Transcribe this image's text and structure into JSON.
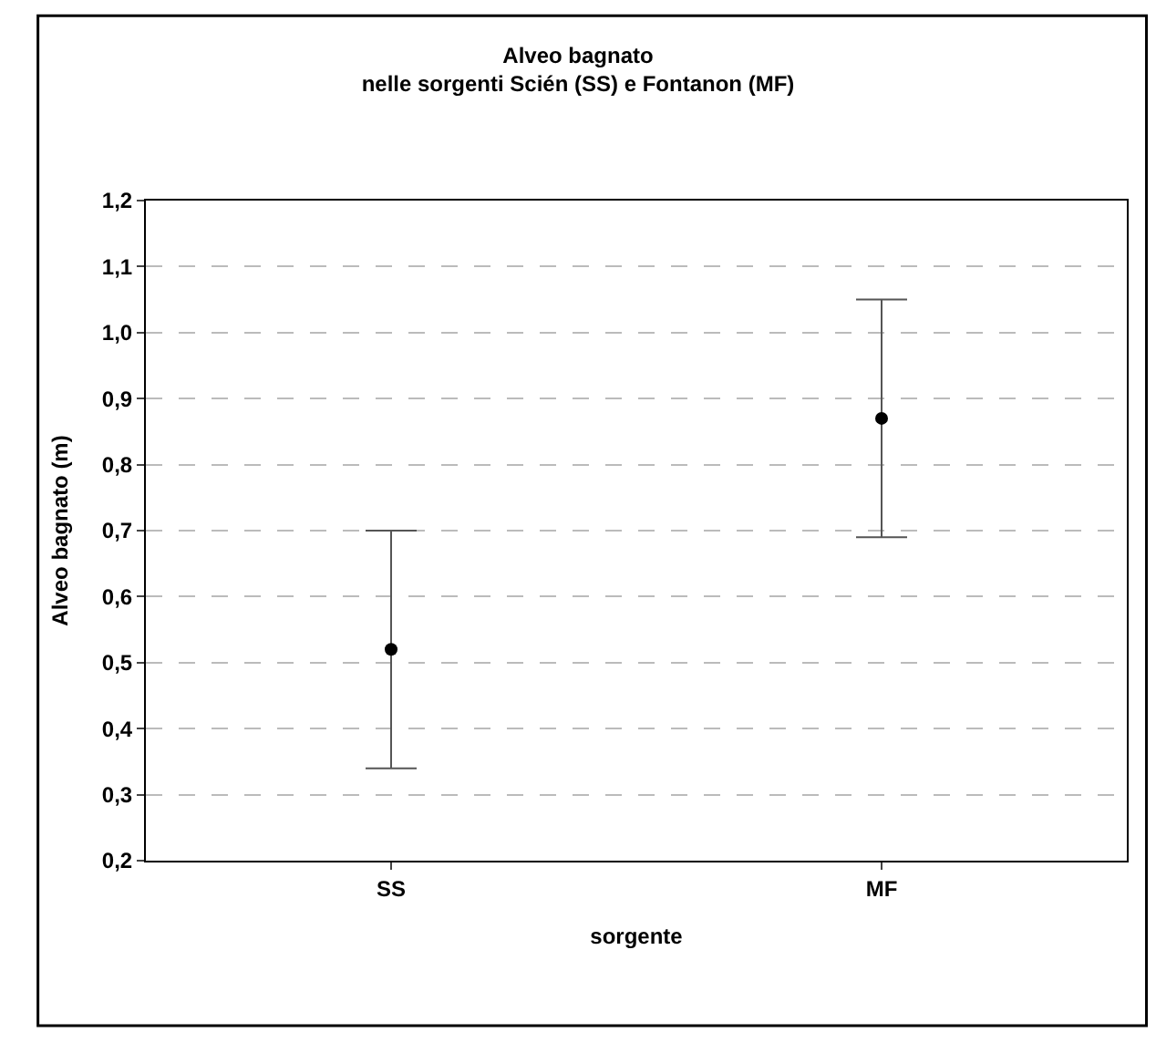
{
  "chart_data": {
    "type": "scatter",
    "title": "Alveo bagnato\nnelle sorgenti Scién (SS) e Fontanon (MF)",
    "xlabel": "sorgente",
    "ylabel": "Alveo bagnato (m)",
    "categories": [
      "SS",
      "MF"
    ],
    "values": [
      0.52,
      0.87
    ],
    "color": "#000000",
    "marker": "circle",
    "errors": [
      [
        0.34,
        0.7
      ],
      [
        0.69,
        1.05
      ]
    ],
    "ylim": [
      0.2,
      1.2
    ],
    "yticks": [
      {
        "value": 0.2,
        "label": "0,2"
      },
      {
        "value": 0.3,
        "label": "0,3"
      },
      {
        "value": 0.4,
        "label": "0,4"
      },
      {
        "value": 0.5,
        "label": "0,5"
      },
      {
        "value": 0.6,
        "label": "0,6"
      },
      {
        "value": 0.7,
        "label": "0,7"
      },
      {
        "value": 0.8,
        "label": "0,8"
      },
      {
        "value": 0.9,
        "label": "0,9"
      },
      {
        "value": 1.0,
        "label": "1,0"
      },
      {
        "value": 1.1,
        "label": "1,1"
      },
      {
        "value": 1.2,
        "label": "1,2"
      }
    ],
    "grid": "y"
  }
}
